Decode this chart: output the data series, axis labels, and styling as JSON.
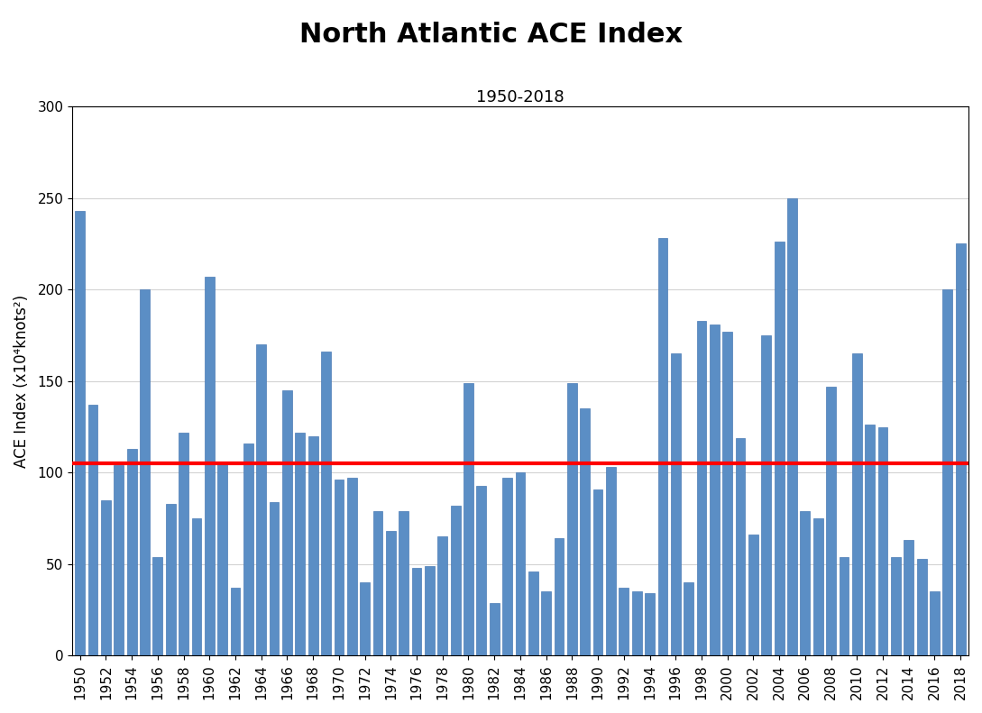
{
  "title": "North Atlantic ACE Index",
  "subtitle": "1950-2018",
  "ylabel": "ACE Index (x10⁴knots²)",
  "years": [
    1950,
    1951,
    1952,
    1953,
    1954,
    1955,
    1956,
    1957,
    1958,
    1959,
    1960,
    1961,
    1962,
    1963,
    1964,
    1965,
    1966,
    1967,
    1968,
    1969,
    1970,
    1971,
    1972,
    1973,
    1974,
    1975,
    1976,
    1977,
    1978,
    1979,
    1980,
    1981,
    1982,
    1983,
    1984,
    1985,
    1986,
    1987,
    1988,
    1989,
    1990,
    1991,
    1992,
    1993,
    1994,
    1995,
    1996,
    1997,
    1998,
    1999,
    2000,
    2001,
    2002,
    2003,
    2004,
    2005,
    2006,
    2007,
    2008,
    2009,
    2010,
    2011,
    2012,
    2013,
    2014,
    2015,
    2016,
    2017,
    2018
  ],
  "values": [
    243,
    137,
    85,
    104,
    113,
    200,
    54,
    83,
    122,
    75,
    207,
    105,
    37,
    116,
    170,
    84,
    145,
    122,
    120,
    166,
    96,
    97,
    40,
    79,
    68,
    79,
    48,
    49,
    65,
    82,
    149,
    93,
    29,
    97,
    100,
    46,
    35,
    64,
    149,
    135,
    91,
    103,
    37,
    35,
    34,
    228,
    165,
    40,
    183,
    181,
    177,
    119,
    66,
    175,
    226,
    250,
    79,
    75,
    147,
    54,
    165,
    126,
    125,
    54,
    63,
    53,
    35,
    200,
    225
  ],
  "bar_color": "#5B8EC5",
  "bar_edgecolor": "#4A7AB5",
  "reference_line": 105,
  "reference_line_color": "#FF0000",
  "ylim": [
    0,
    300
  ],
  "yticks": [
    0,
    50,
    100,
    150,
    200,
    250,
    300
  ],
  "background_color": "#FFFFFF",
  "title_fontsize": 22,
  "subtitle_fontsize": 13,
  "ylabel_fontsize": 12,
  "tick_fontsize": 11
}
